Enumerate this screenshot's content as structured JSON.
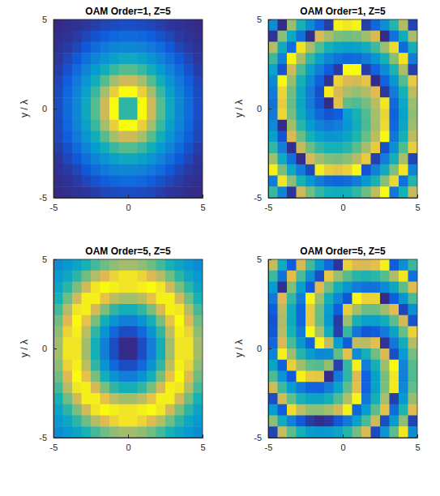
{
  "chart_data": [
    {
      "type": "heatmap",
      "title": "OAM Order=1, Z=5",
      "y_label": "y / λ",
      "xlim": [
        -5,
        5
      ],
      "ylim": [
        -5,
        5
      ],
      "xticks": [
        -5,
        0,
        5
      ],
      "yticks": [
        -5,
        0,
        5
      ],
      "cells": [
        [
          1,
          2,
          3,
          4,
          6,
          8,
          9,
          10,
          10,
          9,
          8,
          6,
          4,
          3,
          2,
          1
        ],
        [
          2,
          3,
          5,
          8,
          11,
          14,
          17,
          19,
          19,
          17,
          14,
          11,
          8,
          5,
          3,
          2
        ],
        [
          3,
          5,
          8,
          13,
          19,
          24,
          28,
          30,
          30,
          28,
          24,
          19,
          13,
          8,
          5,
          3
        ],
        [
          4,
          8,
          13,
          20,
          28,
          35,
          41,
          45,
          45,
          41,
          35,
          28,
          20,
          13,
          8,
          4
        ],
        [
          6,
          11,
          19,
          28,
          38,
          48,
          57,
          62,
          62,
          57,
          48,
          38,
          28,
          19,
          11,
          6
        ],
        [
          8,
          14,
          24,
          35,
          48,
          62,
          75,
          84,
          84,
          75,
          62,
          48,
          35,
          24,
          14,
          8
        ],
        [
          9,
          17,
          28,
          41,
          57,
          75,
          92,
          100,
          100,
          92,
          75,
          57,
          41,
          28,
          17,
          9
        ],
        [
          10,
          19,
          30,
          45,
          62,
          84,
          100,
          55,
          55,
          100,
          84,
          62,
          45,
          30,
          19,
          10
        ],
        [
          10,
          19,
          30,
          45,
          62,
          84,
          100,
          55,
          55,
          100,
          84,
          62,
          45,
          30,
          19,
          10
        ],
        [
          9,
          17,
          28,
          41,
          57,
          75,
          92,
          100,
          100,
          92,
          75,
          57,
          41,
          28,
          17,
          9
        ],
        [
          8,
          14,
          24,
          35,
          48,
          62,
          75,
          84,
          84,
          75,
          62,
          48,
          35,
          24,
          14,
          8
        ],
        [
          6,
          11,
          19,
          28,
          38,
          48,
          57,
          62,
          62,
          57,
          48,
          38,
          28,
          19,
          11,
          6
        ],
        [
          4,
          8,
          13,
          20,
          28,
          35,
          41,
          45,
          45,
          41,
          35,
          28,
          20,
          13,
          8,
          4
        ],
        [
          3,
          5,
          8,
          13,
          19,
          24,
          28,
          30,
          30,
          28,
          24,
          19,
          13,
          8,
          5,
          3
        ],
        [
          2,
          3,
          5,
          8,
          11,
          14,
          17,
          19,
          19,
          17,
          14,
          11,
          8,
          5,
          3,
          2
        ],
        [
          1,
          2,
          3,
          4,
          6,
          8,
          9,
          10,
          10,
          9,
          8,
          6,
          4,
          3,
          2,
          1
        ]
      ]
    },
    {
      "type": "heatmap",
      "title": "OAM Order=1, Z=5",
      "y_label": "y / λ",
      "xlim": [
        -5,
        5
      ],
      "ylim": [
        -5,
        5
      ],
      "xticks": [
        -5,
        0,
        5
      ],
      "yticks": [
        -5,
        0,
        5
      ],
      "cells": [
        [
          -66,
          -179,
          82,
          -1,
          -70,
          -124,
          -162,
          175,
          167,
          176,
          -160,
          -120,
          -63,
          10,
          99,
          -156
        ],
        [
          -171,
          75,
          -24,
          -107,
          -176,
          130,
          91,
          66,
          58,
          65,
          88,
          128,
          -177,
          -104,
          -15,
          91
        ],
        [
          100,
          -14,
          -112,
          164,
          95,
          39,
          -1,
          -27,
          -37,
          -31,
          -9,
          29,
          86,
          158,
          -114,
          -8
        ],
        [
          27,
          -87,
          176,
          91,
          22,
          -34,
          -76,
          -104,
          -116,
          -112,
          -92,
          -54,
          1,
          74,
          163,
          -91
        ],
        [
          -30,
          -142,
          119,
          36,
          -34,
          -89,
          -134,
          -164,
          180,
          180,
          -161,
          -124,
          -68,
          5,
          94,
          -160
        ],
        [
          -70,
          178,
          81,
          -2,
          -71,
          -127,
          -173,
          152,
          130,
          125,
          143,
          -179,
          -124,
          -51,
          40,
          146
        ],
        [
          -94,
          155,
          59,
          -22,
          -90,
          -145,
          170,
          128,
          92,
          80,
          97,
          136,
          -166,
          -91,
          1,
          108
        ],
        [
          -103,
          148,
          53,
          -26,
          -90,
          -140,
          -178,
          139,
          49,
          38,
          62,
          106,
          166,
          -117,
          -24,
          85
        ],
        [
          -95,
          156,
          63,
          -14,
          -74,
          -118,
          -142,
          -131,
          -41,
          2,
          40,
          90,
          154,
          -127,
          -32,
          77
        ],
        [
          -72,
          -179,
          89,
          14,
          -44,
          -83,
          -100,
          -88,
          -52,
          -10,
          35,
          90,
          158,
          -121,
          -25,
          86
        ],
        [
          -34,
          -140,
          129,
          56,
          1,
          -37,
          -55,
          -50,
          -28,
          7,
          53,
          109,
          178,
          -99,
          -2,
          110
        ],
        [
          20,
          -86,
          -175,
          112,
          56,
          19,
          0,
          0,
          16,
          46,
          91,
          146,
          -144,
          -61,
          38,
          150
        ],
        [
          89,
          -17,
          -106,
          -179,
          126,
          88,
          68,
          64,
          76,
          104,
          146,
          -158,
          -89,
          -4,
          93,
          -153
        ],
        [
          172,
          66,
          -22,
          -94,
          -151,
          171,
          149,
          143,
          153,
          179,
          -141,
          -85,
          -16,
          68,
          166,
          -80
        ],
        [
          -89,
          165,
          76,
          3,
          -52,
          -92,
          -115,
          -122,
          -114,
          -89,
          -50,
          4,
          73,
          156,
          -105,
          9
        ],
        [
          24,
          -81,
          -170,
          117,
          60,
          20,
          -4,
          -13,
          -5,
          18,
          56,
          110,
          179,
          -98,
          1,
          114
        ]
      ]
    },
    {
      "type": "heatmap",
      "title": "OAM Order=5, Z=5",
      "y_label": "y / λ",
      "xlim": [
        -5,
        5
      ],
      "ylim": [
        -5,
        5
      ],
      "xticks": [
        -5,
        0,
        5
      ],
      "yticks": [
        -5,
        0,
        5
      ],
      "cells": [
        [
          35,
          40,
          46,
          53,
          61,
          68,
          73,
          76,
          76,
          73,
          68,
          61,
          53,
          46,
          40,
          35
        ],
        [
          40,
          47,
          57,
          68,
          79,
          88,
          93,
          96,
          96,
          93,
          88,
          79,
          68,
          57,
          47,
          40
        ],
        [
          46,
          57,
          70,
          85,
          96,
          100,
          98,
          96,
          96,
          98,
          100,
          96,
          85,
          70,
          57,
          46
        ],
        [
          53,
          68,
          85,
          98,
          98,
          90,
          81,
          76,
          76,
          81,
          90,
          98,
          98,
          85,
          68,
          53
        ],
        [
          61,
          79,
          96,
          98,
          86,
          70,
          58,
          52,
          52,
          58,
          70,
          86,
          98,
          96,
          79,
          61
        ],
        [
          68,
          88,
          100,
          90,
          70,
          52,
          38,
          30,
          30,
          38,
          52,
          70,
          90,
          100,
          88,
          68
        ],
        [
          73,
          93,
          98,
          81,
          58,
          38,
          22,
          14,
          14,
          22,
          38,
          58,
          81,
          98,
          93,
          73
        ],
        [
          76,
          96,
          96,
          76,
          52,
          30,
          14,
          6,
          6,
          14,
          30,
          52,
          76,
          96,
          96,
          76
        ],
        [
          76,
          96,
          96,
          76,
          52,
          30,
          14,
          6,
          6,
          14,
          30,
          52,
          76,
          96,
          96,
          76
        ],
        [
          73,
          93,
          98,
          81,
          58,
          38,
          22,
          14,
          14,
          22,
          38,
          58,
          81,
          98,
          93,
          73
        ],
        [
          68,
          88,
          100,
          90,
          70,
          52,
          38,
          30,
          30,
          38,
          52,
          70,
          90,
          100,
          88,
          68
        ],
        [
          61,
          79,
          96,
          98,
          86,
          70,
          58,
          52,
          52,
          58,
          70,
          86,
          98,
          96,
          79,
          61
        ],
        [
          53,
          68,
          85,
          98,
          98,
          90,
          81,
          76,
          76,
          81,
          90,
          98,
          98,
          85,
          68,
          53
        ],
        [
          46,
          57,
          70,
          85,
          96,
          100,
          98,
          96,
          96,
          98,
          100,
          96,
          85,
          70,
          57,
          46
        ],
        [
          40,
          47,
          57,
          68,
          79,
          88,
          93,
          96,
          96,
          93,
          88,
          79,
          68,
          57,
          47,
          40
        ],
        [
          35,
          40,
          46,
          53,
          61,
          68,
          73,
          76,
          76,
          73,
          68,
          61,
          53,
          46,
          40,
          35
        ]
      ]
    },
    {
      "type": "heatmap",
      "title": "OAM Order=5, Z=5",
      "y_label": "y / λ",
      "xlim": [
        -5,
        5
      ],
      "ylim": [
        -5,
        5
      ],
      "xticks": [
        -5,
        0,
        5
      ],
      "yticks": [
        -5,
        0,
        5
      ],
      "cells": [
        [
          114,
          -15,
          -134,
          123,
          30,
          -52,
          -118,
          -169,
          151,
          132,
          128,
          140,
          173,
          -134,
          -65,
          24
        ],
        [
          25,
          -105,
          136,
          33,
          -64,
          -146,
          143,
          82,
          42,
          13,
          4,
          16,
          43,
          96,
          165,
          -105
        ],
        [
          -44,
          -174,
          68,
          -40,
          -133,
          135,
          59,
          -7,
          -57,
          -91,
          -105,
          -103,
          -70,
          -22,
          46,
          136
        ],
        [
          -97,
          133,
          20,
          -89,
          174,
          82,
          -4,
          -80,
          -140,
          176,
          152,
          154,
          -179,
          -130,
          -57,
          33
        ],
        [
          -130,
          106,
          -13,
          -116,
          146,
          55,
          -42,
          -132,
          148,
          88,
          55,
          56,
          84,
          137,
          -154,
          -60
        ],
        [
          -142,
          94,
          -15,
          -118,
          145,
          53,
          -49,
          -164,
          86,
          1,
          -37,
          -35,
          -8,
          45,
          124,
          -142
        ],
        [
          -138,
          103,
          -1,
          -94,
          178,
          91,
          -10,
          -160,
          20,
          -100,
          -139,
          -132,
          -94,
          -31,
          53,
          152
        ],
        [
          -119,
          132,
          33,
          -50,
          -122,
          176,
          110,
          -41,
          -131,
          110,
          106,
          138,
          -170,
          -97,
          -8,
          101
        ],
        [
          -79,
          172,
          83,
          10,
          -42,
          -74,
          -70,
          49,
          139,
          -70,
          -4,
          58,
          130,
          -147,
          -48,
          61
        ],
        [
          -28,
          -127,
          149,
          86,
          48,
          41,
          80,
          -160,
          20,
          170,
          -89,
          -2,
          86,
          179,
          -77,
          42
        ],
        [
          38,
          -56,
          -135,
          172,
          145,
          143,
          -179,
          -94,
          16,
          131,
          -127,
          -35,
          62,
          165,
          -86,
          38
        ],
        [
          120,
          26,
          -43,
          -96,
          -124,
          -125,
          -92,
          -32,
          48,
          138,
          -125,
          -34,
          64,
          167,
          -74,
          50
        ],
        [
          -147,
          123,
          50,
          1,
          -26,
          -28,
          -4,
          40,
          100,
          176,
          -98,
          -6,
          91,
          -160,
          -47,
          83
        ],
        [
          -44,
          -134,
          158,
          110,
          77,
          75,
          89,
          123,
          173,
          -121,
          -45,
          47,
          140,
          -112,
          6,
          136
        ],
        [
          75,
          -15,
          -84,
          -137,
          -164,
          -176,
          -167,
          -138,
          -98,
          -37,
          34,
          116,
          -147,
          -44,
          75,
          -155
        ],
        [
          -156,
          115,
          46,
          -7,
          -40,
          -52,
          -48,
          -29,
          11,
          62,
          128,
          -150,
          -57,
          46,
          165,
          -66
        ]
      ]
    }
  ]
}
